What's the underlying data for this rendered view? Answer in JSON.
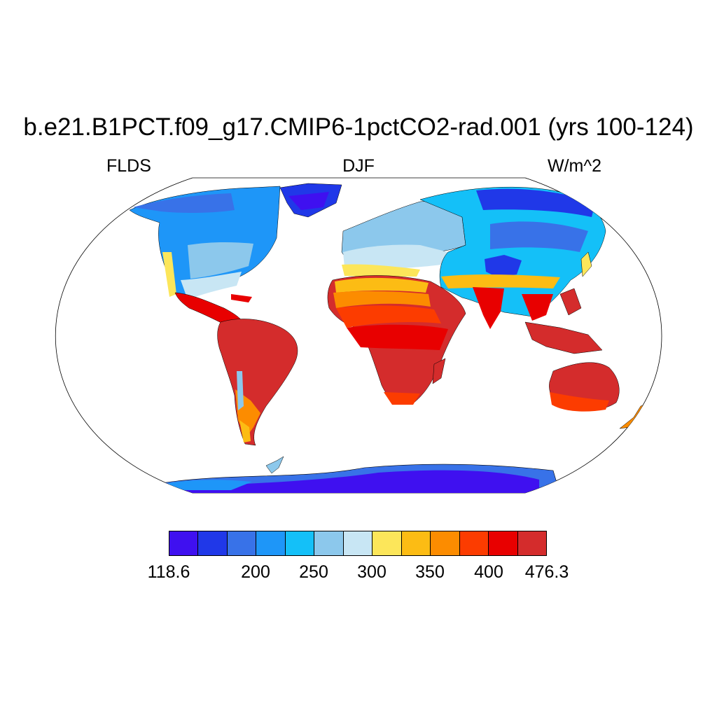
{
  "title": "b.e21.B1PCT.f09_g17.CMIP6-1pctCO2-rad.001 (yrs 100-124)",
  "subtitle_left": "FLDS",
  "subtitle_center": "DJF",
  "subtitle_right": "W/m^2",
  "colorbar": {
    "colors": [
      "#3f10f0",
      "#2038e8",
      "#3872e8",
      "#1e96f8",
      "#14c0f8",
      "#8cc8ec",
      "#c8e6f4",
      "#fce65a",
      "#fcbc14",
      "#fc8c00",
      "#fc3c00",
      "#e80000",
      "#d42c2c"
    ],
    "labels": [
      "118.6",
      "200",
      "250",
      "300",
      "350",
      "400",
      "476.3"
    ]
  },
  "regions": [
    {
      "name": "Antarctica",
      "color": "#3f10f0"
    },
    {
      "name": "Greenland",
      "color": "#2038e8"
    },
    {
      "name": "North America",
      "color": "#1e96f8"
    },
    {
      "name": "South America",
      "color": "#d42c2c"
    },
    {
      "name": "Africa",
      "color": "#e80000"
    },
    {
      "name": "Europe",
      "color": "#8cc8ec"
    },
    {
      "name": "Asia",
      "color": "#14c0f8"
    },
    {
      "name": "Australia",
      "color": "#d42c2c"
    }
  ]
}
